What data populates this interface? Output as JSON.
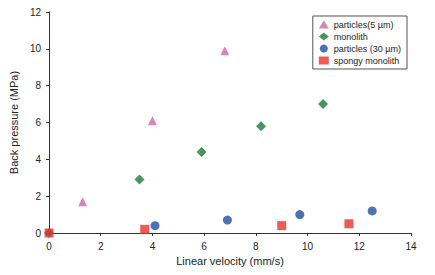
{
  "chart_data": {
    "type": "scatter",
    "x_label": "Linear velocity (mm/s)",
    "y_label": "Back pressure (MPa)",
    "xlim": [
      0,
      14
    ],
    "ylim": [
      0,
      12
    ],
    "xticks": [
      0,
      2,
      4,
      6,
      8,
      10,
      12,
      14
    ],
    "yticks": [
      0,
      2,
      4,
      6,
      8,
      10,
      12
    ],
    "grid": false,
    "legend": "upper right",
    "series": [
      {
        "name": "particles(5 µm)",
        "color": "#c966a8",
        "marker": "triangle",
        "x": [
          1.3,
          4.0,
          6.8
        ],
        "values": [
          1.7,
          6.1,
          9.9
        ]
      },
      {
        "name": "monolith",
        "color": "#1b7a3b",
        "marker": "diamond",
        "x": [
          0,
          3.5,
          5.9,
          8.2,
          10.6
        ],
        "values": [
          0,
          2.9,
          4.4,
          5.8,
          7.0
        ]
      },
      {
        "name": "particles (30 µm)",
        "color": "#1f4fa0",
        "marker": "circle",
        "x": [
          4.1,
          6.9,
          9.7,
          12.5
        ],
        "values": [
          0.4,
          0.7,
          1.0,
          1.2
        ]
      },
      {
        "name": "spongy monolith",
        "color": "#e63329",
        "marker": "square",
        "x": [
          0,
          3.7,
          9.0,
          11.6
        ],
        "values": [
          0,
          0.2,
          0.4,
          0.5
        ]
      }
    ]
  }
}
